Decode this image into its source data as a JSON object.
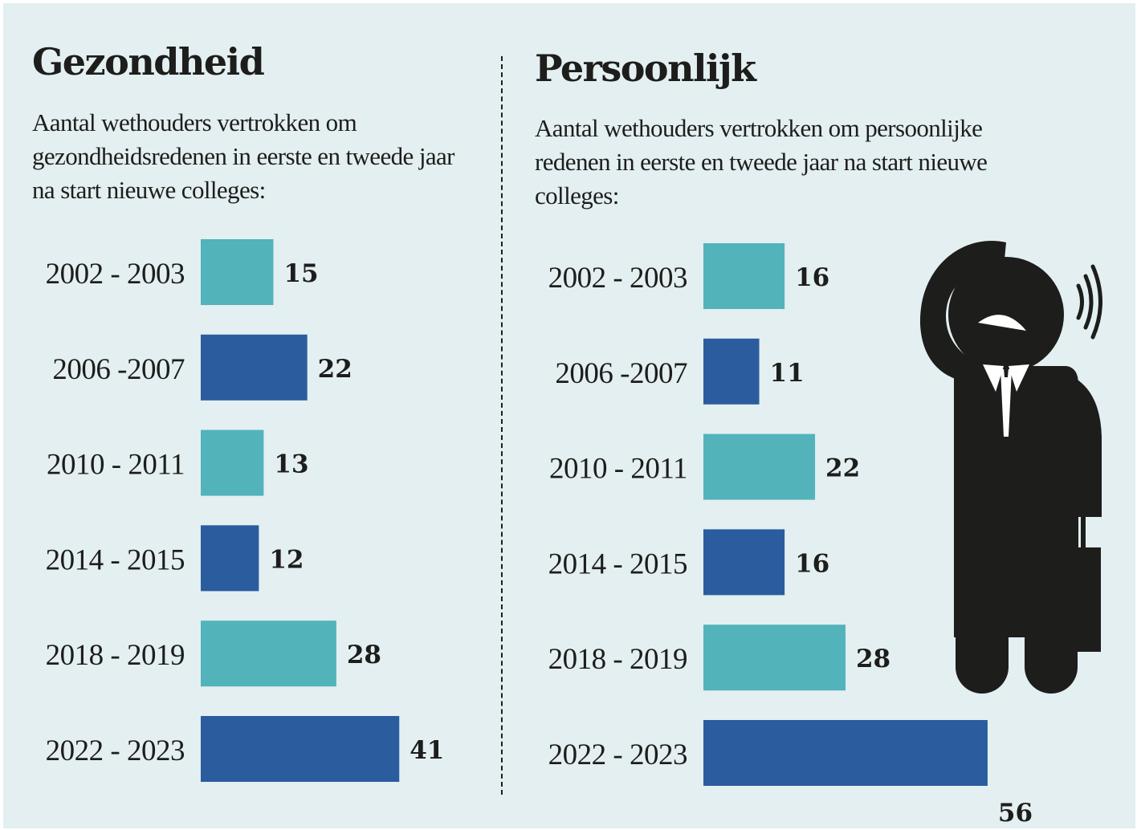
{
  "colors": {
    "teal": "#52b3bb",
    "blue": "#2a5c9e",
    "background": "#e3eff1",
    "ink": "#1d1d1b"
  },
  "icon": "confused-businessman-icon",
  "left": {
    "title": "Gezondheid",
    "subtitle": "Aantal wethouders vertrokken om gezondheidsredenen in eerste en tweede jaar na start nieuwe colleges:"
  },
  "right": {
    "title": "Persoonlijk",
    "subtitle": "Aantal wethouders vertrokken om persoonlijke redenen in eerste en tweede jaar na start nieuwe colleges:"
  },
  "chart_data": [
    {
      "type": "bar",
      "orientation": "horizontal",
      "categories": [
        "2002 - 2003",
        "2006 -2007",
        "2010 - 2011",
        "2014 - 2015",
        "2018 - 2019",
        "2022 - 2023"
      ],
      "values": [
        15,
        22,
        13,
        12,
        28,
        41
      ],
      "bar_colors": [
        "#52b3bb",
        "#2a5c9e",
        "#52b3bb",
        "#2a5c9e",
        "#52b3bb",
        "#2a5c9e"
      ],
      "data_labels": true,
      "grid": false
    },
    {
      "type": "bar",
      "orientation": "horizontal",
      "categories": [
        "2002 - 2003",
        "2006 -2007",
        "2010 - 2011",
        "2014 - 2015",
        "2018 - 2019",
        "2022 - 2023"
      ],
      "values": [
        16,
        11,
        22,
        16,
        28,
        56
      ],
      "bar_colors": [
        "#52b3bb",
        "#2a5c9e",
        "#52b3bb",
        "#2a5c9e",
        "#52b3bb",
        "#2a5c9e"
      ],
      "data_labels": true,
      "grid": false
    }
  ]
}
